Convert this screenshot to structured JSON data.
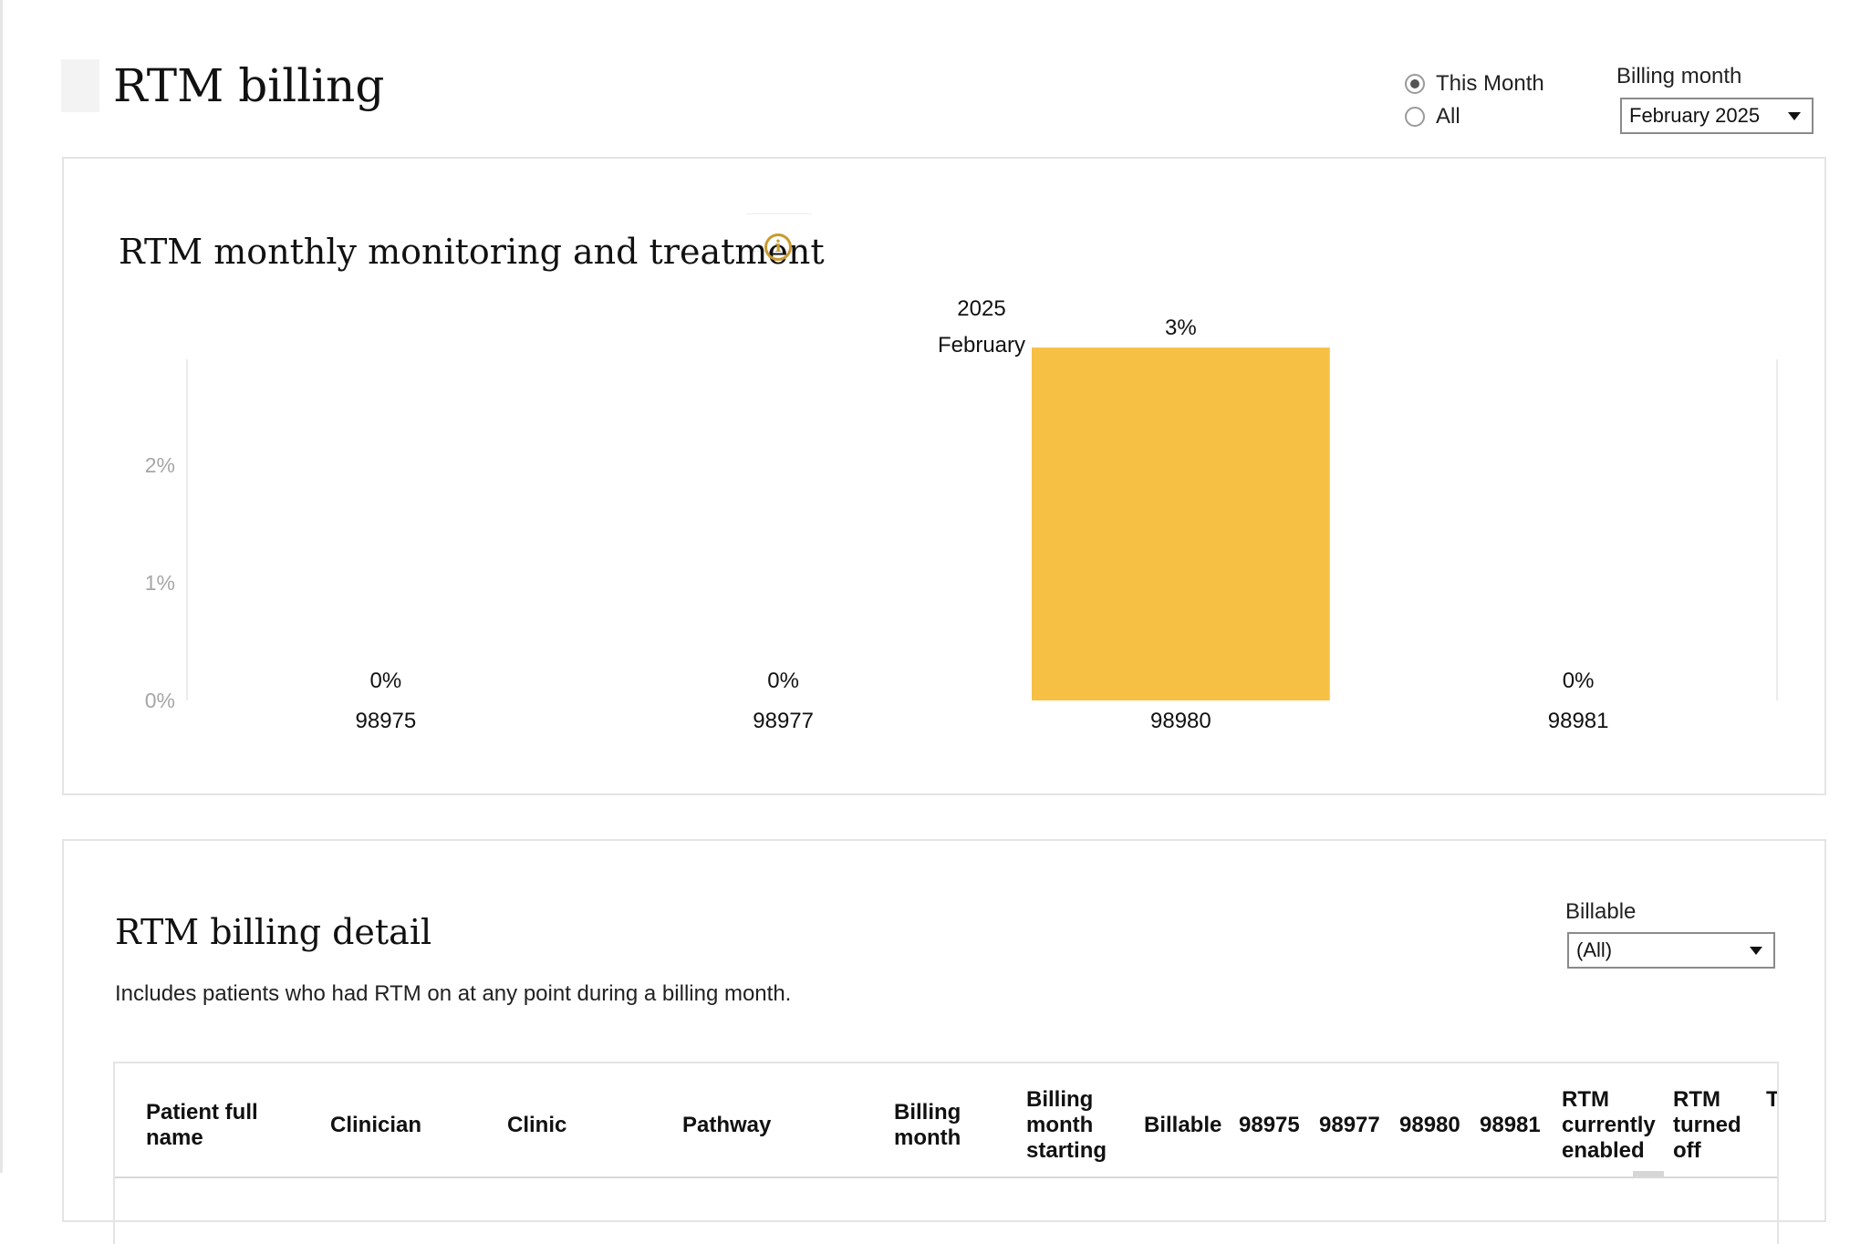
{
  "header": {
    "title": "RTM billing",
    "range_options": [
      {
        "label": "This Month",
        "checked": true
      },
      {
        "label": "All",
        "checked": false
      }
    ],
    "billing_month_label": "Billing month",
    "billing_month_value": "February 2025"
  },
  "chart_card": {
    "title": "RTM monthly monitoring and treatment",
    "info_icon": "info-circle-icon"
  },
  "chart_data": {
    "type": "bar",
    "header_year": "2025",
    "header_month": "February",
    "categories": [
      "98975",
      "98977",
      "98980",
      "98981"
    ],
    "values": [
      0,
      0,
      3,
      0
    ],
    "value_labels": [
      "0%",
      "0%",
      "3%",
      "0%"
    ],
    "yticks": [
      "0%",
      "1%",
      "2%"
    ],
    "ylim": [
      0,
      2.9
    ],
    "bar_color": "#f6c045"
  },
  "detail_card": {
    "title": "RTM billing detail",
    "subtitle": "Includes patients who had RTM on at any point during a billing month.",
    "billable_label": "Billable",
    "billable_value": "(All)",
    "columns": [
      {
        "label": "Patient full name"
      },
      {
        "label": "Clinician"
      },
      {
        "label": "Clinic"
      },
      {
        "label": "Pathway"
      },
      {
        "label": "Billing month"
      },
      {
        "label": "Billing month starting"
      },
      {
        "label": "Billable"
      },
      {
        "label": "98975"
      },
      {
        "label": "98977"
      },
      {
        "label": "98980"
      },
      {
        "label": "98981"
      },
      {
        "label": "RTM currently enabled"
      },
      {
        "label": "RTM turned off"
      },
      {
        "label": "T"
      }
    ]
  }
}
